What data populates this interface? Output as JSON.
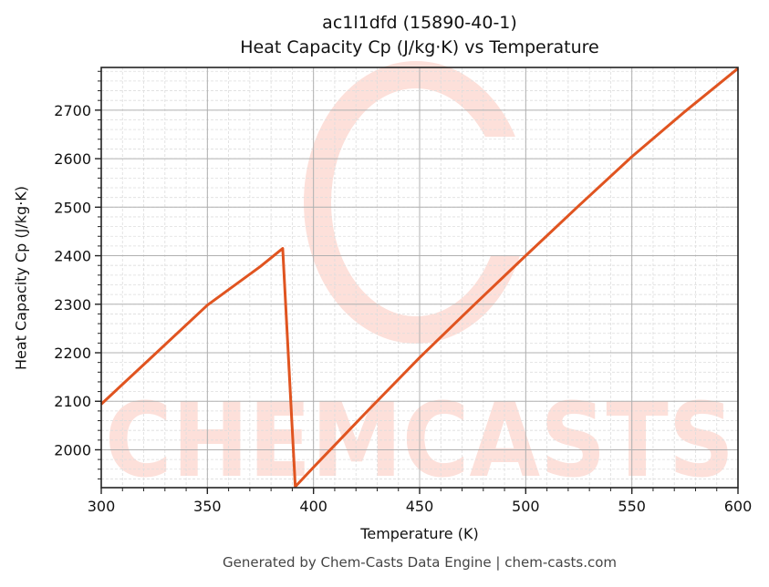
{
  "chart_data": {
    "type": "line",
    "title": "ac1l1dfd (15890-40-1)",
    "subtitle": "Heat Capacity Cp (J/kg·K) vs Temperature",
    "xlabel": "Temperature (K)",
    "ylabel": "Heat Capacity Cp (J/kg·K)",
    "xlim": [
      300,
      600
    ],
    "ylim": [
      1922,
      2788
    ],
    "xticks": [
      300,
      350,
      400,
      450,
      500,
      550,
      600
    ],
    "yticks": [
      2000,
      2100,
      2200,
      2300,
      2400,
      2500,
      2600,
      2700
    ],
    "x_minor_step": 10,
    "y_minor_step": 20,
    "grid": true,
    "legend": null,
    "series": [
      {
        "name": "Cp",
        "color": "#e05420",
        "x": [
          300,
          325,
          350,
          375,
          385.5,
          391.4,
          400,
          425,
          450,
          475,
          500,
          525,
          550,
          575,
          600
        ],
        "y": [
          2094,
          2196,
          2298,
          2378,
          2415,
          1924,
          1964,
          2078,
          2190,
          2296,
          2400,
          2503,
          2604,
          2697,
          2786
        ]
      }
    ],
    "watermark": "CHEMCASTS"
  },
  "footer": "Generated by Chem-Casts Data Engine | chem-casts.com",
  "colors": {
    "line": "#e05420",
    "watermark": "#fde0da",
    "major_grid": "#b0b0b0",
    "minor_grid": "#dddddd",
    "axis": "#222222"
  }
}
